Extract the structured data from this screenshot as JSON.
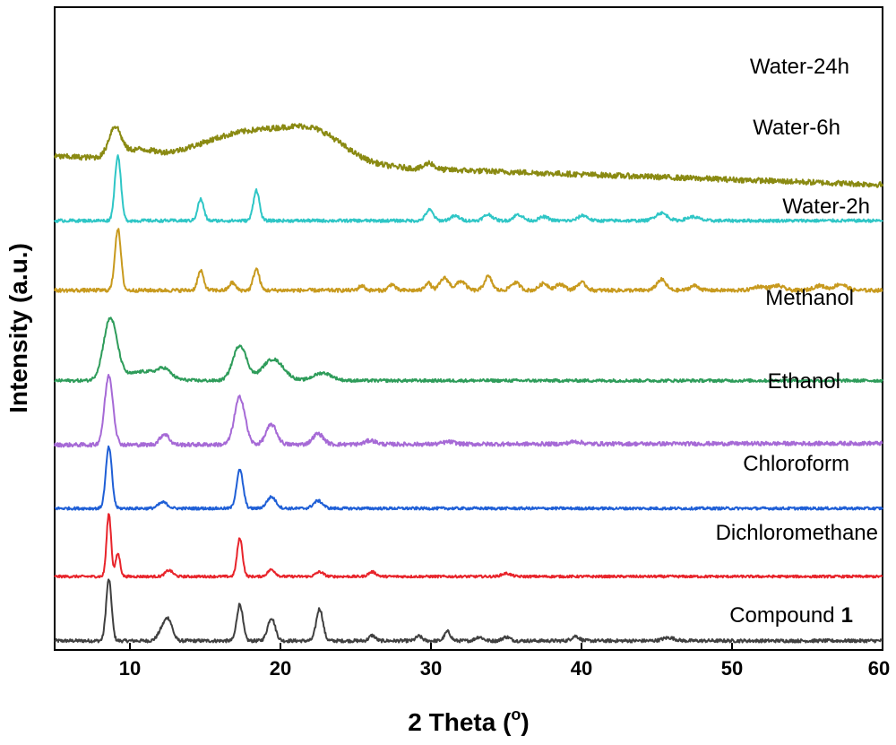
{
  "chart_data": {
    "type": "line",
    "xlabel": "2 Theta (",
    "xlabel_sup": "o",
    "xlabel_end": ")",
    "ylabel": "Intensity (a.u.)",
    "xlim": [
      5,
      60
    ],
    "x_ticks": [
      10,
      20,
      30,
      40,
      50,
      60
    ],
    "x_tick_labels": [
      "10",
      "20",
      "30",
      "40",
      "50",
      "60"
    ],
    "ylim": [
      0,
      840
    ],
    "y_ticks_shown": false,
    "grid": false,
    "legend": "labels placed beside each trace on the right",
    "series": [
      {
        "name": "Compound",
        "name_bold_suffix": "1",
        "color": "#404040",
        "baseline": 12,
        "baseline_end": 12,
        "noise": 2.2,
        "peaks": [
          [
            8.6,
            80,
            0.18
          ],
          [
            12.2,
            16,
            0.3
          ],
          [
            12.6,
            22,
            0.25
          ],
          [
            17.3,
            48,
            0.2
          ],
          [
            19.4,
            30,
            0.25
          ],
          [
            22.6,
            42,
            0.22
          ],
          [
            26.1,
            7,
            0.2
          ],
          [
            29.2,
            6,
            0.2
          ],
          [
            31.1,
            12,
            0.2
          ],
          [
            33.2,
            5,
            0.25
          ],
          [
            35.0,
            5,
            0.25
          ],
          [
            39.6,
            6,
            0.25
          ],
          [
            45.8,
            4,
            0.4
          ]
        ]
      },
      {
        "name": "Dichloromethane",
        "color": "#e8242b",
        "baseline": 96,
        "baseline_end": 96,
        "noise": 1.6,
        "peaks": [
          [
            8.6,
            82,
            0.15
          ],
          [
            9.2,
            30,
            0.15
          ],
          [
            12.6,
            8,
            0.25
          ],
          [
            17.3,
            50,
            0.18
          ],
          [
            19.4,
            9,
            0.25
          ],
          [
            22.6,
            6,
            0.25
          ],
          [
            26.1,
            6,
            0.25
          ],
          [
            35.0,
            4,
            0.3
          ]
        ]
      },
      {
        "name": "Chloroform",
        "color": "#1f5fd6",
        "baseline": 185,
        "baseline_end": 185,
        "noise": 1.8,
        "peaks": [
          [
            8.6,
            80,
            0.2
          ],
          [
            12.2,
            8,
            0.3
          ],
          [
            17.3,
            50,
            0.22
          ],
          [
            19.4,
            15,
            0.3
          ],
          [
            22.5,
            10,
            0.3
          ]
        ]
      },
      {
        "name": "Ethanol",
        "color": "#a66ad6",
        "baseline": 268,
        "baseline_end": 270,
        "noise": 2.6,
        "peaks": [
          [
            8.6,
            90,
            0.28
          ],
          [
            12.3,
            14,
            0.3
          ],
          [
            17.3,
            62,
            0.35
          ],
          [
            19.4,
            26,
            0.35
          ],
          [
            22.5,
            14,
            0.35
          ],
          [
            26.0,
            5,
            0.35
          ],
          [
            31.2,
            3,
            0.4
          ],
          [
            39.6,
            3,
            0.4
          ]
        ]
      },
      {
        "name": "Methanol",
        "color": "#2e9c5a",
        "baseline": 352,
        "baseline_end": 352,
        "noise": 2.0,
        "peaks": [
          [
            8.7,
            80,
            0.45
          ],
          [
            11.0,
            12,
            1.2
          ],
          [
            12.3,
            10,
            0.4
          ],
          [
            17.3,
            46,
            0.45
          ],
          [
            19.5,
            28,
            0.7
          ],
          [
            22.8,
            10,
            0.6
          ]
        ]
      },
      {
        "name": "Water-2h",
        "color": "#c89a1e",
        "baseline": 470,
        "baseline_end": 470,
        "noise": 2.4,
        "peaks": [
          [
            9.2,
            80,
            0.2
          ],
          [
            14.7,
            25,
            0.2
          ],
          [
            16.8,
            10,
            0.2
          ],
          [
            18.4,
            28,
            0.2
          ],
          [
            25.4,
            6,
            0.2
          ],
          [
            27.4,
            8,
            0.2
          ],
          [
            29.8,
            10,
            0.2
          ],
          [
            30.9,
            16,
            0.3
          ],
          [
            32.0,
            12,
            0.3
          ],
          [
            33.8,
            18,
            0.25
          ],
          [
            35.6,
            10,
            0.3
          ],
          [
            37.5,
            9,
            0.3
          ],
          [
            38.6,
            8,
            0.3
          ],
          [
            40.0,
            10,
            0.3
          ],
          [
            45.3,
            14,
            0.3
          ],
          [
            47.5,
            6,
            0.3
          ],
          [
            51.8,
            5,
            0.4
          ],
          [
            53.0,
            6,
            0.4
          ],
          [
            55.8,
            6,
            0.4
          ],
          [
            57.2,
            8,
            0.4
          ]
        ]
      },
      {
        "name": "Water-6h",
        "color": "#2fc6c6",
        "baseline": 561,
        "baseline_end": 561,
        "noise": 2.0,
        "peaks": [
          [
            9.2,
            85,
            0.2
          ],
          [
            14.7,
            28,
            0.2
          ],
          [
            18.4,
            40,
            0.2
          ],
          [
            29.9,
            14,
            0.25
          ],
          [
            31.6,
            6,
            0.3
          ],
          [
            33.8,
            8,
            0.3
          ],
          [
            35.8,
            8,
            0.3
          ],
          [
            37.5,
            5,
            0.3
          ],
          [
            40.1,
            7,
            0.3
          ],
          [
            45.3,
            10,
            0.4
          ],
          [
            47.4,
            5,
            0.4
          ]
        ]
      },
      {
        "name": "Water-24h",
        "color": "#8a8a12",
        "baseline": 645,
        "baseline_end": 608,
        "noise": 3.6,
        "peaks": [
          [
            9.0,
            38,
            0.4
          ],
          [
            10.5,
            10,
            1.0
          ],
          [
            18.5,
            42,
            3.5
          ],
          [
            22.5,
            25,
            1.8
          ],
          [
            29.9,
            8,
            0.3
          ]
        ]
      }
    ]
  }
}
